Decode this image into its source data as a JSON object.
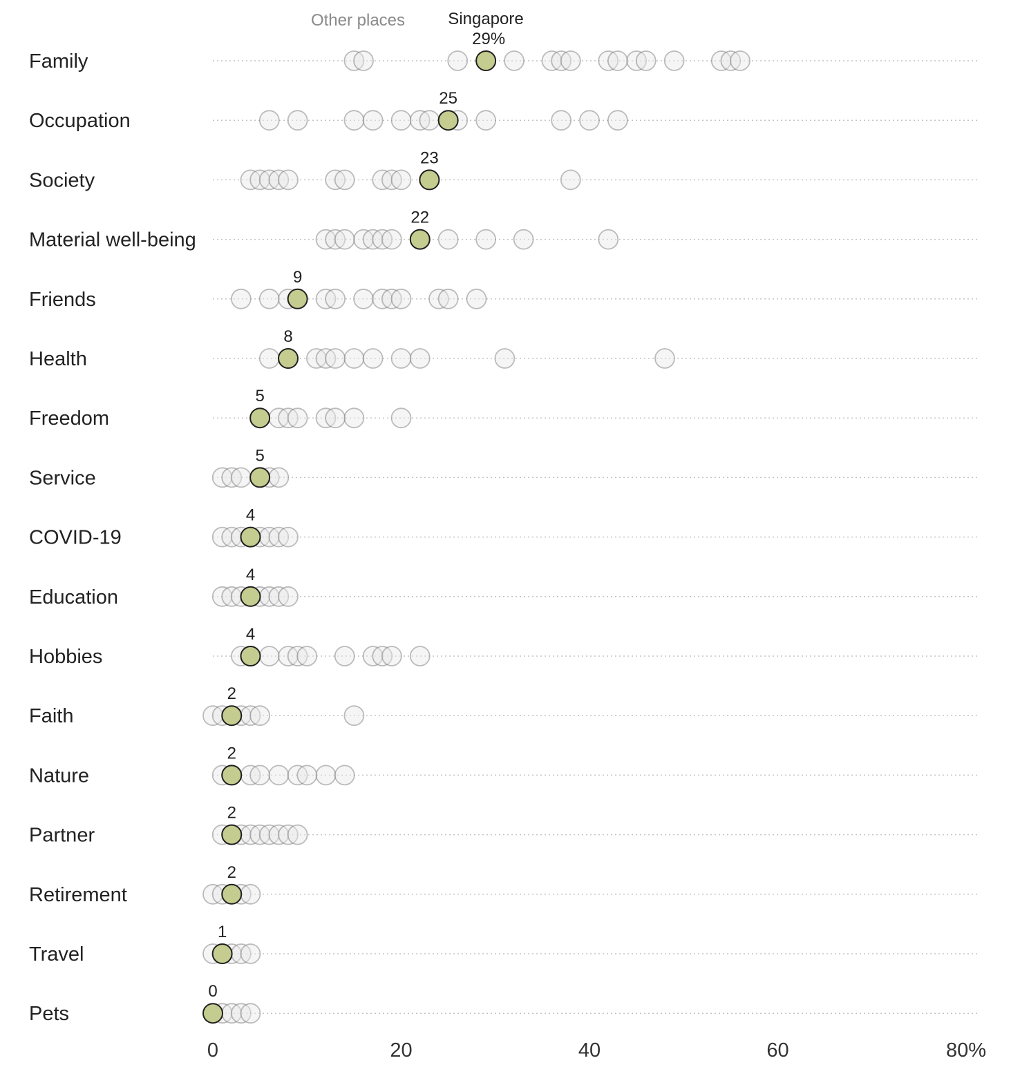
{
  "chart_data": {
    "type": "scatter",
    "legend": {
      "other_label": "Other places",
      "focus_label": "Singapore"
    },
    "focus_series": "Singapore",
    "unit_suffix": "%",
    "xlim": [
      0,
      80
    ],
    "x_ticks": [
      0,
      20,
      40,
      60,
      80
    ],
    "x_tick_labels": [
      "0",
      "20",
      "40",
      "60",
      "80%"
    ],
    "colors": {
      "focus_fill": "#c5cc8f",
      "focus_stroke": "#1f1f1f",
      "other_fill": "#e8e8e8",
      "other_stroke": "#6e6e6e",
      "gridline": "#c4c4c4"
    },
    "categories": [
      {
        "label": "Family",
        "focus_value": 29,
        "focus_value_label": "29%",
        "others": [
          15,
          16,
          26,
          32,
          36,
          37,
          38,
          42,
          43,
          45,
          46,
          49,
          54,
          55,
          56
        ]
      },
      {
        "label": "Occupation",
        "focus_value": 25,
        "focus_value_label": "25",
        "others": [
          6,
          9,
          15,
          17,
          20,
          22,
          23,
          26,
          29,
          37,
          40,
          43
        ]
      },
      {
        "label": "Society",
        "focus_value": 23,
        "focus_value_label": "23",
        "others": [
          4,
          5,
          6,
          7,
          8,
          13,
          14,
          18,
          19,
          20,
          38
        ]
      },
      {
        "label": "Material well-being",
        "focus_value": 22,
        "focus_value_label": "22",
        "others": [
          12,
          13,
          14,
          16,
          17,
          18,
          19,
          25,
          29,
          33,
          42
        ]
      },
      {
        "label": "Friends",
        "focus_value": 9,
        "focus_value_label": "9",
        "others": [
          3,
          6,
          8,
          12,
          13,
          16,
          18,
          19,
          20,
          24,
          25,
          28
        ]
      },
      {
        "label": "Health",
        "focus_value": 8,
        "focus_value_label": "8",
        "others": [
          6,
          11,
          12,
          13,
          15,
          17,
          20,
          22,
          31,
          48
        ]
      },
      {
        "label": "Freedom",
        "focus_value": 5,
        "focus_value_label": "5",
        "others": [
          7,
          8,
          9,
          12,
          13,
          15,
          20
        ]
      },
      {
        "label": "Service",
        "focus_value": 5,
        "focus_value_label": "5",
        "others": [
          1,
          2,
          3,
          6,
          7
        ]
      },
      {
        "label": "COVID-19",
        "focus_value": 4,
        "focus_value_label": "4",
        "others": [
          1,
          2,
          3,
          5,
          6,
          7,
          8
        ]
      },
      {
        "label": "Education",
        "focus_value": 4,
        "focus_value_label": "4",
        "others": [
          1,
          2,
          3,
          5,
          6,
          7,
          8
        ]
      },
      {
        "label": "Hobbies",
        "focus_value": 4,
        "focus_value_label": "4",
        "others": [
          3,
          6,
          8,
          9,
          10,
          14,
          17,
          18,
          19,
          22
        ]
      },
      {
        "label": "Faith",
        "focus_value": 2,
        "focus_value_label": "2",
        "others": [
          0,
          1,
          3,
          4,
          5,
          15
        ]
      },
      {
        "label": "Nature",
        "focus_value": 2,
        "focus_value_label": "2",
        "others": [
          1,
          4,
          5,
          7,
          9,
          10,
          12,
          14
        ]
      },
      {
        "label": "Partner",
        "focus_value": 2,
        "focus_value_label": "2",
        "others": [
          1,
          3,
          4,
          5,
          6,
          7,
          8,
          9
        ]
      },
      {
        "label": "Retirement",
        "focus_value": 2,
        "focus_value_label": "2",
        "others": [
          0,
          1,
          3,
          4
        ]
      },
      {
        "label": "Travel",
        "focus_value": 1,
        "focus_value_label": "1",
        "others": [
          0,
          2,
          3,
          4
        ]
      },
      {
        "label": "Pets",
        "focus_value": 0,
        "focus_value_label": "0",
        "others": [
          1,
          2,
          3,
          4
        ]
      }
    ]
  }
}
